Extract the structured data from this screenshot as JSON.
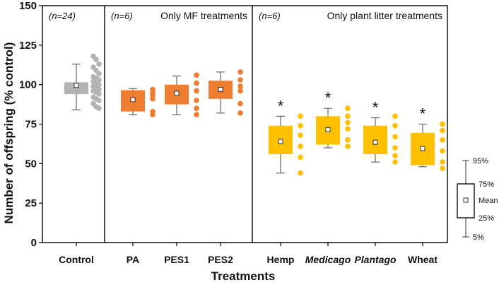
{
  "chart_data": {
    "type": "box",
    "ylabel": "Number of offspring (% control)",
    "xlabel": "Treatments",
    "ylim": [
      0,
      150
    ],
    "yticks": [
      0,
      25,
      50,
      75,
      100,
      125,
      150
    ],
    "categories": [
      "Control",
      "PA",
      "PES1",
      "PES2",
      "Hemp",
      "Medicago",
      "Plantago",
      "Wheat"
    ],
    "italic_categories": [
      "Medicago",
      "Plantago"
    ],
    "panels": [
      {
        "n": "(n=24)",
        "title": "",
        "categories": [
          "Control"
        ]
      },
      {
        "n": "(n=6)",
        "title": "Only MF treatments",
        "categories": [
          "PA",
          "PES1",
          "PES2"
        ]
      },
      {
        "n": "(n=6)",
        "title": "Only plant litter treatments",
        "categories": [
          "Hemp",
          "Medicago",
          "Plantago",
          "Wheat"
        ]
      }
    ],
    "colors": {
      "Control": "#b3b3b3",
      "PA": "#ed7d31",
      "PES1": "#ed7d31",
      "PES2": "#ed7d31",
      "Hemp": "#ffc000",
      "Medicago": "#ffc000",
      "Plantago": "#ffc000",
      "Wheat": "#ffc000"
    },
    "boxes": [
      {
        "category": "Control",
        "p5": 84,
        "q1": 94,
        "q3": 101.5,
        "p95": 113,
        "mean": 99.5,
        "significant": false,
        "points": [
          118,
          116,
          113,
          111,
          109,
          107,
          105,
          104,
          103,
          102,
          101,
          100,
          99,
          98,
          97,
          96,
          95,
          94,
          92,
          91,
          90,
          88,
          86,
          85
        ]
      },
      {
        "category": "PA",
        "p5": 81,
        "q1": 83,
        "q3": 96.5,
        "p95": 97.5,
        "mean": 90.5,
        "significant": false,
        "points": [
          97,
          95,
          93,
          91,
          83,
          81
        ]
      },
      {
        "category": "PES1",
        "p5": 81,
        "q1": 87.5,
        "q3": 100,
        "p95": 105.5,
        "mean": 94.5,
        "significant": false,
        "points": [
          106,
          101,
          96,
          90,
          85,
          81
        ]
      },
      {
        "category": "PES2",
        "p5": 82,
        "q1": 91,
        "q3": 102.5,
        "p95": 108,
        "mean": 97,
        "significant": false,
        "points": [
          108,
          103,
          99,
          96,
          88,
          82
        ]
      },
      {
        "category": "Hemp",
        "p5": 44,
        "q1": 56,
        "q3": 74,
        "p95": 80,
        "mean": 64,
        "significant": true,
        "points": [
          80,
          74,
          68,
          61,
          54,
          44
        ]
      },
      {
        "category": "Medicago",
        "p5": 60,
        "q1": 62,
        "q3": 80,
        "p95": 85,
        "mean": 71.5,
        "significant": true,
        "points": [
          85,
          80,
          76,
          72,
          65,
          61
        ]
      },
      {
        "category": "Plantago",
        "p5": 51,
        "q1": 56,
        "q3": 74,
        "p95": 79,
        "mean": 63.5,
        "significant": true,
        "points": [
          80,
          74,
          67,
          60,
          55,
          51
        ]
      },
      {
        "category": "Wheat",
        "p5": 48,
        "q1": 49,
        "q3": 69.5,
        "p95": 75,
        "mean": 59.5,
        "significant": true,
        "points": [
          75,
          71,
          65,
          58,
          51,
          47
        ]
      }
    ],
    "significance_marker": "*",
    "legend": {
      "labels": {
        "p95": "95%",
        "q3": "75%",
        "mean": "Mean",
        "q1": "25%",
        "p5": "5%"
      }
    }
  }
}
